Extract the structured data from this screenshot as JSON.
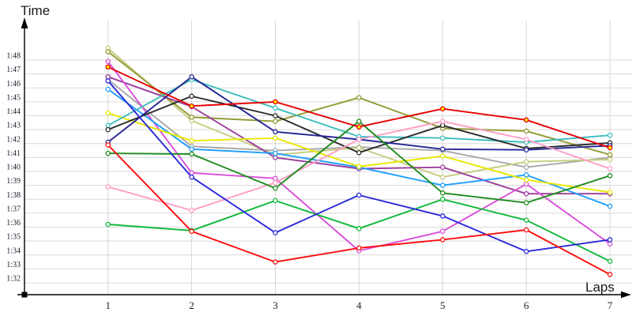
{
  "chart_data": {
    "type": "line",
    "y_axis_title": "Time",
    "x_axis_title": "Laps",
    "x_label": "Laps",
    "y_label": "Time",
    "x_ticks": [
      "1",
      "2",
      "3",
      "4",
      "5",
      "6",
      "7"
    ],
    "y_ticks": [
      "1:48",
      "1:47",
      "1:46",
      "1:45",
      "1:44",
      "1:43",
      "1:42",
      "1:41",
      "1:40",
      "1:39",
      "1:38",
      "1:37",
      "1:36",
      "1:35",
      "1:34",
      "1:33",
      "1:32"
    ],
    "y_tick_top_seconds": 108,
    "grid": true,
    "legend": "none",
    "marker_style": "open-circle",
    "highlight_marker_fill": "#ffe800",
    "series": [
      {
        "name": "gray",
        "color": "#a8a8a8",
        "values": [
          106.6,
          101.8,
          101.5,
          101.75,
          101.5,
          100.3,
          101.0
        ]
      },
      {
        "name": "khaki",
        "color": "#c6cc7e",
        "values": [
          108.85,
          103.65,
          101.2,
          101.7,
          99.6,
          100.7,
          100.85
        ]
      },
      {
        "name": "olive",
        "color": "#939a33",
        "values": [
          108.6,
          103.9,
          103.6,
          105.3,
          103.1,
          102.9,
          101.2
        ]
      },
      {
        "name": "purple",
        "color": "#9b3d9b",
        "values": [
          106.8,
          104.65,
          101.0,
          100.2,
          100.3,
          98.4,
          98.4
        ]
      },
      {
        "name": "magenta",
        "color": "#d94fd9",
        "values": [
          107.9,
          99.9,
          99.5,
          94.3,
          95.7,
          99.1,
          94.8
        ]
      },
      {
        "name": "deepskyblue",
        "color": "#1e9fff",
        "values": [
          105.9,
          101.6,
          101.3,
          100.3,
          99.0,
          99.75,
          97.5
        ]
      },
      {
        "name": "yellow",
        "color": "#e8e800",
        "values": [
          104.2,
          102.2,
          102.4,
          100.35,
          101.1,
          99.4,
          98.5
        ]
      },
      {
        "name": "turquoise",
        "color": "#3dbdbd",
        "values": [
          103.3,
          106.6,
          104.55,
          102.5,
          102.4,
          102.1,
          102.6
        ]
      },
      {
        "name": "black",
        "color": "#2b2b2b",
        "values": [
          103.0,
          105.4,
          104.0,
          101.35,
          103.3,
          101.65,
          102.05
        ]
      },
      {
        "name": "navy",
        "color": "#252594",
        "values": [
          102.1,
          106.8,
          102.85,
          102.3,
          101.6,
          101.55,
          101.85
        ]
      },
      {
        "name": "pink",
        "color": "#ff9ec6",
        "values": [
          98.9,
          97.2,
          99.2,
          102.3,
          103.6,
          102.3,
          100.2
        ]
      },
      {
        "name": "darkgreen",
        "color": "#1e8c1e",
        "values": [
          101.3,
          101.25,
          98.8,
          103.6,
          98.45,
          97.75,
          99.7
        ]
      },
      {
        "name": "brightgreen",
        "color": "#0fb839",
        "values": [
          96.2,
          95.75,
          97.9,
          95.9,
          98.0,
          96.5,
          93.55
        ]
      },
      {
        "name": "royalblue",
        "color": "#2a2ad9",
        "values": [
          106.5,
          99.6,
          95.6,
          98.3,
          96.8,
          94.25,
          95.1
        ]
      },
      {
        "name": "red-lower",
        "color": "#fb0d0d",
        "values": [
          101.9,
          95.7,
          93.5,
          94.5,
          95.1,
          95.8,
          92.6
        ]
      },
      {
        "name": "red-highlight",
        "color": "#e40000",
        "marker_fill": "#ffe800",
        "values": [
          107.5,
          104.7,
          105.0,
          103.2,
          104.5,
          103.7,
          101.7
        ]
      }
    ]
  }
}
